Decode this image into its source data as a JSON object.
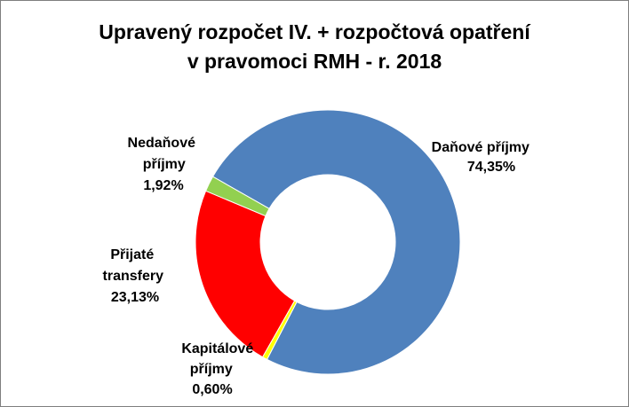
{
  "chart_data": {
    "type": "pie",
    "variant": "doughnut",
    "title_line1": "Upravený rozpočet IV. + rozpočtová opatření",
    "title_line2": "v pravomoci RMH - r. 2018",
    "slices": [
      {
        "label": "Daňové příjmy",
        "value": 74.35,
        "value_text": "74,35%",
        "color": "#4f81bd"
      },
      {
        "label": "Kapitálové příjmy",
        "value": 0.6,
        "value_text": "0,60%",
        "color": "#ffff00"
      },
      {
        "label": "Přijaté transfery",
        "value": 23.13,
        "value_text": "23,13%",
        "color": "#ff0000"
      },
      {
        "label": "Nedaňové příjmy",
        "value": 1.92,
        "value_text": "1,92%",
        "color": "#92d050"
      }
    ],
    "legend": "none",
    "labels_outside": true
  }
}
